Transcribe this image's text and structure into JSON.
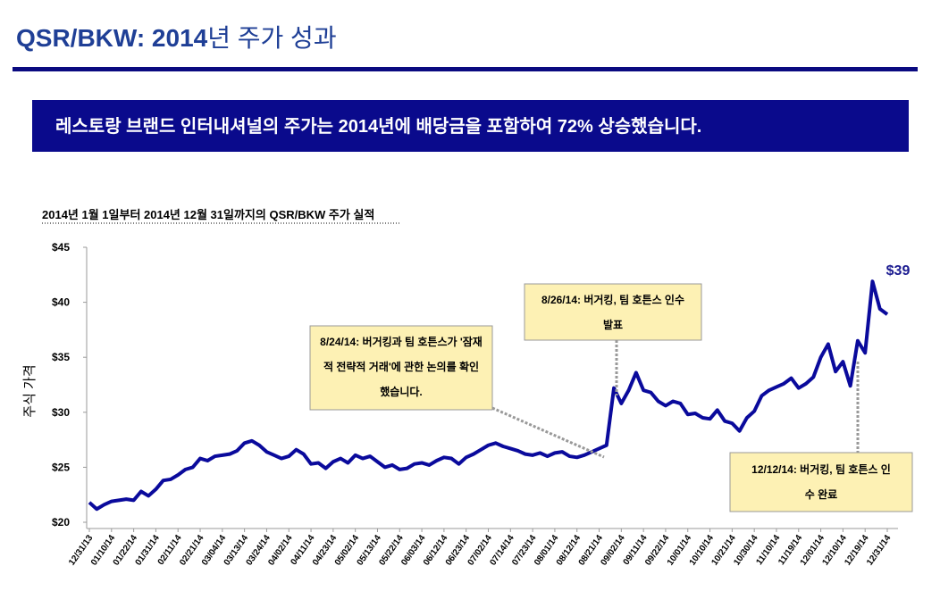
{
  "header": {
    "title_bold": "QSR/BKW: 2014",
    "title_rest": "년 주가 성과",
    "banner": "레스토랑 브랜드 인터내셔널의 주가는 2014년에 배당금을 포함하여 72% 상승했습니다."
  },
  "chart_data": {
    "type": "line",
    "subtitle": "2014년 1월 1일부터 2014년 12월 31일까지의 QSR/BKW 주가 실적",
    "y_label": "주식 가격",
    "color": "#0a0a9c",
    "categories": [
      "12/31/13",
      null,
      null,
      "01/10/14",
      null,
      null,
      "01/22/14",
      null,
      null,
      "01/31/14",
      null,
      null,
      "02/11/14",
      null,
      null,
      "02/21/14",
      null,
      null,
      "03/04/14",
      null,
      null,
      "03/13/14",
      null,
      null,
      "03/24/14",
      null,
      null,
      "04/02/14",
      null,
      null,
      "04/11/14",
      null,
      null,
      "04/23/14",
      null,
      null,
      "05/02/14",
      null,
      null,
      "05/13/14",
      null,
      null,
      "05/22/14",
      null,
      null,
      "06/03/14",
      null,
      null,
      "06/12/14",
      null,
      null,
      "06/23/14",
      null,
      null,
      "07/02/14",
      null,
      null,
      "07/14/14",
      null,
      null,
      "07/23/14",
      null,
      null,
      "08/01/14",
      null,
      null,
      "08/12/14",
      null,
      null,
      "08/21/14",
      null,
      null,
      "09/02/14",
      null,
      null,
      "09/11/14",
      null,
      null,
      "09/22/14",
      null,
      null,
      "10/01/14",
      null,
      null,
      "10/10/14",
      null,
      null,
      "10/21/14",
      null,
      null,
      "10/30/14",
      null,
      null,
      "11/10/14",
      null,
      null,
      "11/19/14",
      null,
      null,
      "12/01/14",
      null,
      null,
      "12/10/14",
      null,
      null,
      "12/19/14",
      null,
      null,
      "12/31/14"
    ],
    "values": [
      21.8,
      21.2,
      21.6,
      21.9,
      22.0,
      22.1,
      22.0,
      22.8,
      22.4,
      23.0,
      23.8,
      23.9,
      24.3,
      24.8,
      25.0,
      25.8,
      25.6,
      26.0,
      26.1,
      26.2,
      26.5,
      27.2,
      27.4,
      27.0,
      26.4,
      26.1,
      25.8,
      26.0,
      26.6,
      26.2,
      25.3,
      25.4,
      24.9,
      25.5,
      25.8,
      25.4,
      26.1,
      25.8,
      26.0,
      25.5,
      25.0,
      25.2,
      24.8,
      24.9,
      25.3,
      25.4,
      25.2,
      25.6,
      25.9,
      25.8,
      25.3,
      25.9,
      26.2,
      26.6,
      27.0,
      27.2,
      26.9,
      26.7,
      26.5,
      26.2,
      26.1,
      26.3,
      26.0,
      26.3,
      26.4,
      26.0,
      25.9,
      26.1,
      26.4,
      26.7,
      27.0,
      32.2,
      30.8,
      32.0,
      33.6,
      32.0,
      31.8,
      31.0,
      30.6,
      31.0,
      30.8,
      29.8,
      29.9,
      29.5,
      29.4,
      30.2,
      29.2,
      29.0,
      28.3,
      29.5,
      30.1,
      31.5,
      32.0,
      32.3,
      32.6,
      33.1,
      32.2,
      32.6,
      33.2,
      35.0,
      36.2,
      33.7,
      34.6,
      32.4,
      36.5,
      35.4,
      41.9,
      39.4,
      38.9
    ],
    "ylim": [
      20,
      45
    ],
    "yticks": [
      {
        "value": 20,
        "label": "$20"
      },
      {
        "value": 25,
        "label": "$25"
      },
      {
        "value": 30,
        "label": "$30"
      },
      {
        "value": 35,
        "label": "$35"
      },
      {
        "value": 40,
        "label": "$40"
      },
      {
        "value": 45,
        "label": "$45"
      }
    ],
    "grid": false,
    "annotations": [
      {
        "lines": [
          "$39"
        ]
      },
      {
        "lines": [
          "8/24/14: 버거킹과 팀 호튼스가 '잠재",
          "적 전략적 거래'에 관한 논의를 확인",
          "했습니다."
        ]
      },
      {
        "lines": [
          "8/26/14: 버거킹, 팀 호튼스 인수",
          "발표"
        ]
      },
      {
        "lines": [
          "12/12/14: 버거킹, 팀 호튼스 인",
          "수 완료"
        ]
      }
    ]
  }
}
